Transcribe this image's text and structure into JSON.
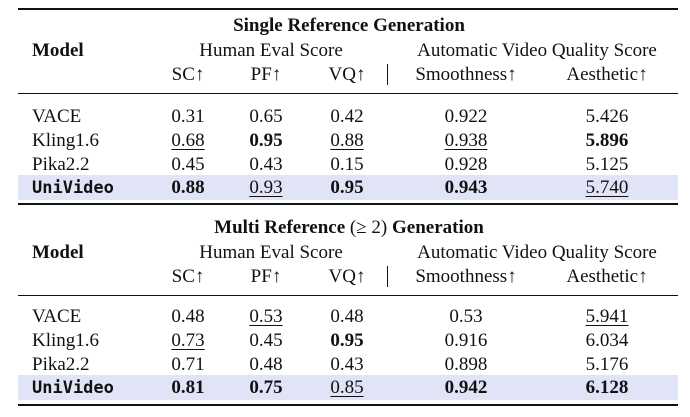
{
  "sections": [
    {
      "title": "Single Reference Generation",
      "model_label": "Model",
      "group_human": "Human Eval Score",
      "group_auto": "Automatic Video Quality Score",
      "columns": [
        "SC↑",
        "PF↑",
        "VQ↑",
        "Smoothness↑",
        "Aesthetic↑"
      ],
      "rows": [
        {
          "model": "VACE",
          "sc": "0.31",
          "pf": "0.65",
          "vq": "0.42",
          "smooth": "0.922",
          "aes": "5.426"
        },
        {
          "model": "Kling1.6",
          "sc": "0.68",
          "pf": "0.95",
          "vq": "0.88",
          "smooth": "0.938",
          "aes": "5.896"
        },
        {
          "model": "Pika2.2",
          "sc": "0.45",
          "pf": "0.43",
          "vq": "0.15",
          "smooth": "0.928",
          "aes": "5.125"
        },
        {
          "model": "UniVideo",
          "sc": "0.88",
          "pf": "0.93",
          "vq": "0.95",
          "smooth": "0.943",
          "aes": "5.740"
        }
      ]
    },
    {
      "title_prefix": "Multi Reference",
      "title_op": "(≥ 2)",
      "title_suffix": "Generation",
      "model_label": "Model",
      "group_human": "Human Eval Score",
      "group_auto": "Automatic Video Quality Score",
      "columns": [
        "SC↑",
        "PF↑",
        "VQ↑",
        "Smoothness↑",
        "Aesthetic↑"
      ],
      "rows": [
        {
          "model": "VACE",
          "sc": "0.48",
          "pf": "0.53",
          "vq": "0.48",
          "smooth": "0.53",
          "aes": "5.941"
        },
        {
          "model": "Kling1.6",
          "sc": "0.73",
          "pf": "0.45",
          "vq": "0.95",
          "smooth": "0.916",
          "aes": "6.034"
        },
        {
          "model": "Pika2.2",
          "sc": "0.71",
          "pf": "0.48",
          "vq": "0.43",
          "smooth": "0.898",
          "aes": "5.176"
        },
        {
          "model": "UniVideo",
          "sc": "0.81",
          "pf": "0.75",
          "vq": "0.85",
          "smooth": "0.942",
          "aes": "6.128"
        }
      ]
    }
  ],
  "highlight_color": "#e1e3f6"
}
